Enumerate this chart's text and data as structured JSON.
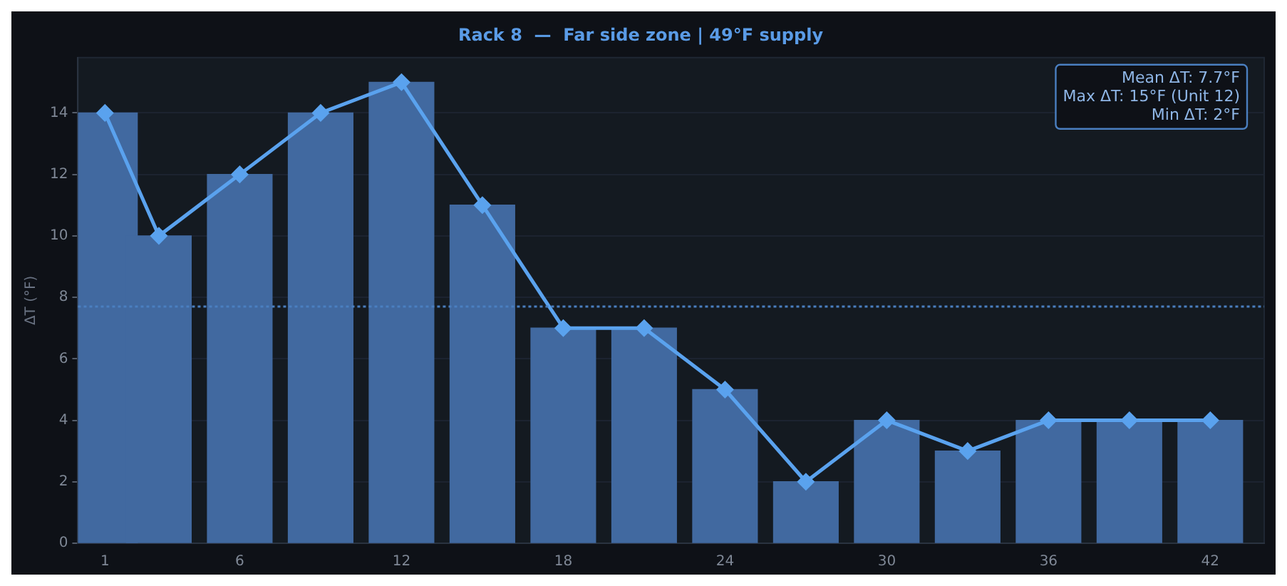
{
  "chart_data": {
    "type": "bar",
    "title": "Rack 8  —  Far side zone | 49°F supply",
    "ylabel": "ΔT (°F)",
    "x": [
      1,
      3,
      6,
      9,
      12,
      15,
      18,
      21,
      24,
      27,
      30,
      33,
      36,
      39,
      42
    ],
    "series": [
      {
        "color": "#4169a0",
        "values": [
          14,
          10,
          12,
          14,
          15,
          11,
          7,
          7,
          5,
          2,
          4,
          3,
          4,
          4,
          4
        ]
      },
      {
        "type": "line",
        "color": "#5aa2ee",
        "marker": "diamond",
        "line_style": "solid",
        "values": [
          14,
          10,
          12,
          14,
          15,
          11,
          7,
          7,
          5,
          2,
          4,
          3,
          4,
          4,
          4
        ]
      }
    ],
    "xlim": [
      0,
      44
    ],
    "xticks": [
      1,
      6,
      12,
      18,
      24,
      30,
      36,
      42
    ],
    "ylim": [
      0,
      15.8
    ],
    "yticks": [
      0,
      2,
      4,
      6,
      8,
      10,
      12,
      14
    ],
    "ref_lines": [
      {
        "axis": "y",
        "value": 7.7,
        "color": "#4a7fc0",
        "line_style": "dotted"
      }
    ],
    "annotations": [
      "Mean ΔT: 7.7°F",
      "Max ΔT: 15°F (Unit 12)",
      "Min ΔT: 2°F"
    ],
    "grid": "y",
    "legend": false
  }
}
